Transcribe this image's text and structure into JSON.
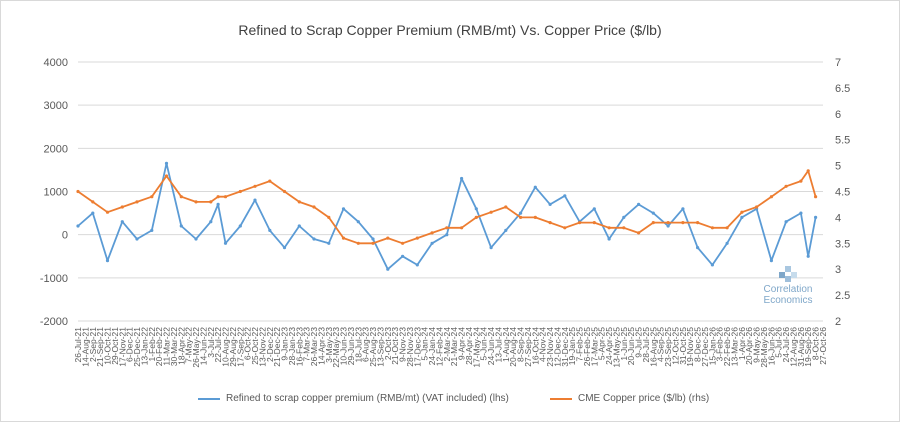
{
  "chart_data": {
    "type": "line",
    "title": "Refined to Scrap Copper Premium (RMB/mt) Vs. Copper Price ($/lb)",
    "y_left": {
      "min": -2000,
      "max": 4000,
      "ticks": [
        "4000",
        "3000",
        "2000",
        "1000",
        "0",
        "-1000",
        "-2000"
      ]
    },
    "y_right": {
      "min": 2,
      "max": 7,
      "ticks": [
        "7",
        "6.5",
        "6",
        "5.5",
        "5",
        "4.5",
        "4",
        "3.5",
        "3",
        "2.5",
        "2"
      ]
    },
    "x_tick_labels": [
      "26-Jul-21",
      "14-Aug-21",
      "2-Sep-21",
      "21-Sep-21",
      "10-Oct-21",
      "29-Oct-21",
      "17-Nov-21",
      "6-Dec-21",
      "25-Dec-21",
      "13-Jan-22",
      "1-Feb-22",
      "20-Feb-22",
      "11-Mar-22",
      "30-Mar-22",
      "18-Apr-22",
      "7-May-22",
      "26-May-22",
      "14-Jun-22",
      "3-Jul-22",
      "22-Jul-22",
      "10-Aug-22",
      "29-Aug-22",
      "17-Sep-22",
      "6-Oct-22",
      "25-Oct-22",
      "13-Nov-22",
      "2-Dec-22",
      "21-Dec-22",
      "9-Jan-23",
      "28-Jan-23",
      "16-Feb-23",
      "7-Mar-23",
      "26-Mar-23",
      "14-Apr-23",
      "3-May-23",
      "22-May-23",
      "10-Jun-23",
      "29-Jun-23",
      "18-Jul-23",
      "6-Aug-23",
      "25-Aug-23",
      "13-Sep-23",
      "2-Oct-23",
      "21-Oct-23",
      "9-Nov-23",
      "28-Nov-23",
      "17-Dec-23",
      "5-Jan-24",
      "24-Jan-24",
      "12-Feb-24",
      "2-Mar-24",
      "21-Mar-24",
      "9-Apr-24",
      "28-Apr-24",
      "17-May-24",
      "5-Jun-24",
      "24-Jun-24",
      "13-Jul-24",
      "1-Aug-24",
      "20-Aug-24",
      "8-Sep-24",
      "27-Sep-24",
      "16-Oct-24",
      "4-Nov-24",
      "23-Nov-24",
      "12-Dec-24",
      "31-Dec-24",
      "19-Jan-25",
      "7-Feb-25",
      "26-Feb-25",
      "17-Mar-25",
      "5-Apr-25",
      "24-Apr-25",
      "13-May-25",
      "1-Jun-25",
      "20-Jun-25",
      "9-Jul-25",
      "28-Jul-25",
      "16-Aug-25",
      "4-Sep-25",
      "23-Sep-25",
      "12-Oct-25",
      "31-Oct-25",
      "19-Nov-25",
      "8-Dec-25",
      "27-Dec-25",
      "15-Jan-26",
      "3-Feb-26",
      "22-Feb-26",
      "13-Mar-26",
      "1-Apr-26",
      "20-Apr-26",
      "9-May-26",
      "28-May-26",
      "16-Jun-26",
      "5-Jul-26",
      "24-Jul-26",
      "12-Aug-26",
      "31-Aug-26",
      "19-Sep-26",
      "8-Oct-26",
      "27-Oct-26"
    ],
    "grid": "horizontal",
    "legend_position": "bottom",
    "series": [
      {
        "name": "Refined to scrap copper premium (RMB/mt) (VAT included) (lhs)",
        "axis": "left",
        "color": "#5b9bd5",
        "x_index": [
          0,
          2,
          4,
          6,
          8,
          10,
          12,
          14,
          16,
          18,
          19,
          20,
          22,
          24,
          26,
          28,
          30,
          32,
          34,
          36,
          38,
          40,
          42,
          44,
          46,
          48,
          50,
          52,
          54,
          56,
          58,
          60,
          62,
          64,
          66,
          68,
          70,
          72,
          74,
          76,
          78,
          80,
          82,
          84,
          86,
          88,
          90,
          92,
          94,
          96,
          98,
          99,
          100
        ],
        "values": [
          200,
          500,
          -600,
          300,
          -100,
          100,
          1650,
          200,
          -100,
          300,
          700,
          -200,
          200,
          800,
          100,
          -300,
          200,
          -100,
          -200,
          600,
          300,
          -100,
          -800,
          -500,
          -700,
          -200,
          0,
          1300,
          600,
          -300,
          100,
          500,
          1100,
          700,
          900,
          300,
          600,
          -100,
          400,
          700,
          500,
          200,
          600,
          -300,
          -700,
          -200,
          400,
          600,
          -600,
          300,
          500,
          -500,
          400
        ]
      },
      {
        "name": "CME Copper price ($/lb) (rhs)",
        "axis": "right",
        "color": "#ed7d31",
        "x_index": [
          0,
          2,
          4,
          6,
          8,
          10,
          12,
          14,
          16,
          18,
          19,
          20,
          22,
          24,
          26,
          28,
          30,
          32,
          34,
          36,
          38,
          40,
          42,
          44,
          46,
          48,
          50,
          52,
          54,
          56,
          58,
          60,
          62,
          64,
          66,
          68,
          70,
          72,
          74,
          76,
          78,
          80,
          82,
          84,
          86,
          88,
          90,
          92,
          94,
          96,
          98,
          99,
          100
        ],
        "values": [
          4.5,
          4.3,
          4.1,
          4.2,
          4.3,
          4.4,
          4.8,
          4.4,
          4.3,
          4.3,
          4.4,
          4.4,
          4.5,
          4.6,
          4.7,
          4.5,
          4.3,
          4.2,
          4.0,
          3.6,
          3.5,
          3.5,
          3.6,
          3.5,
          3.6,
          3.7,
          3.8,
          3.8,
          4.0,
          4.1,
          4.2,
          4.0,
          4.0,
          3.9,
          3.8,
          3.9,
          3.9,
          3.8,
          3.8,
          3.7,
          3.9,
          3.9,
          3.9,
          3.9,
          3.8,
          3.8,
          4.1,
          4.2,
          4.4,
          4.6,
          4.7,
          4.9,
          4.4
        ]
      }
    ]
  },
  "legend": {
    "series1": "Refined to scrap copper premium (RMB/mt) (VAT included) (lhs)",
    "series2": "CME Copper price ($/lb) (rhs)"
  },
  "watermark": {
    "line1": "Correlation",
    "line2": "Economics"
  }
}
